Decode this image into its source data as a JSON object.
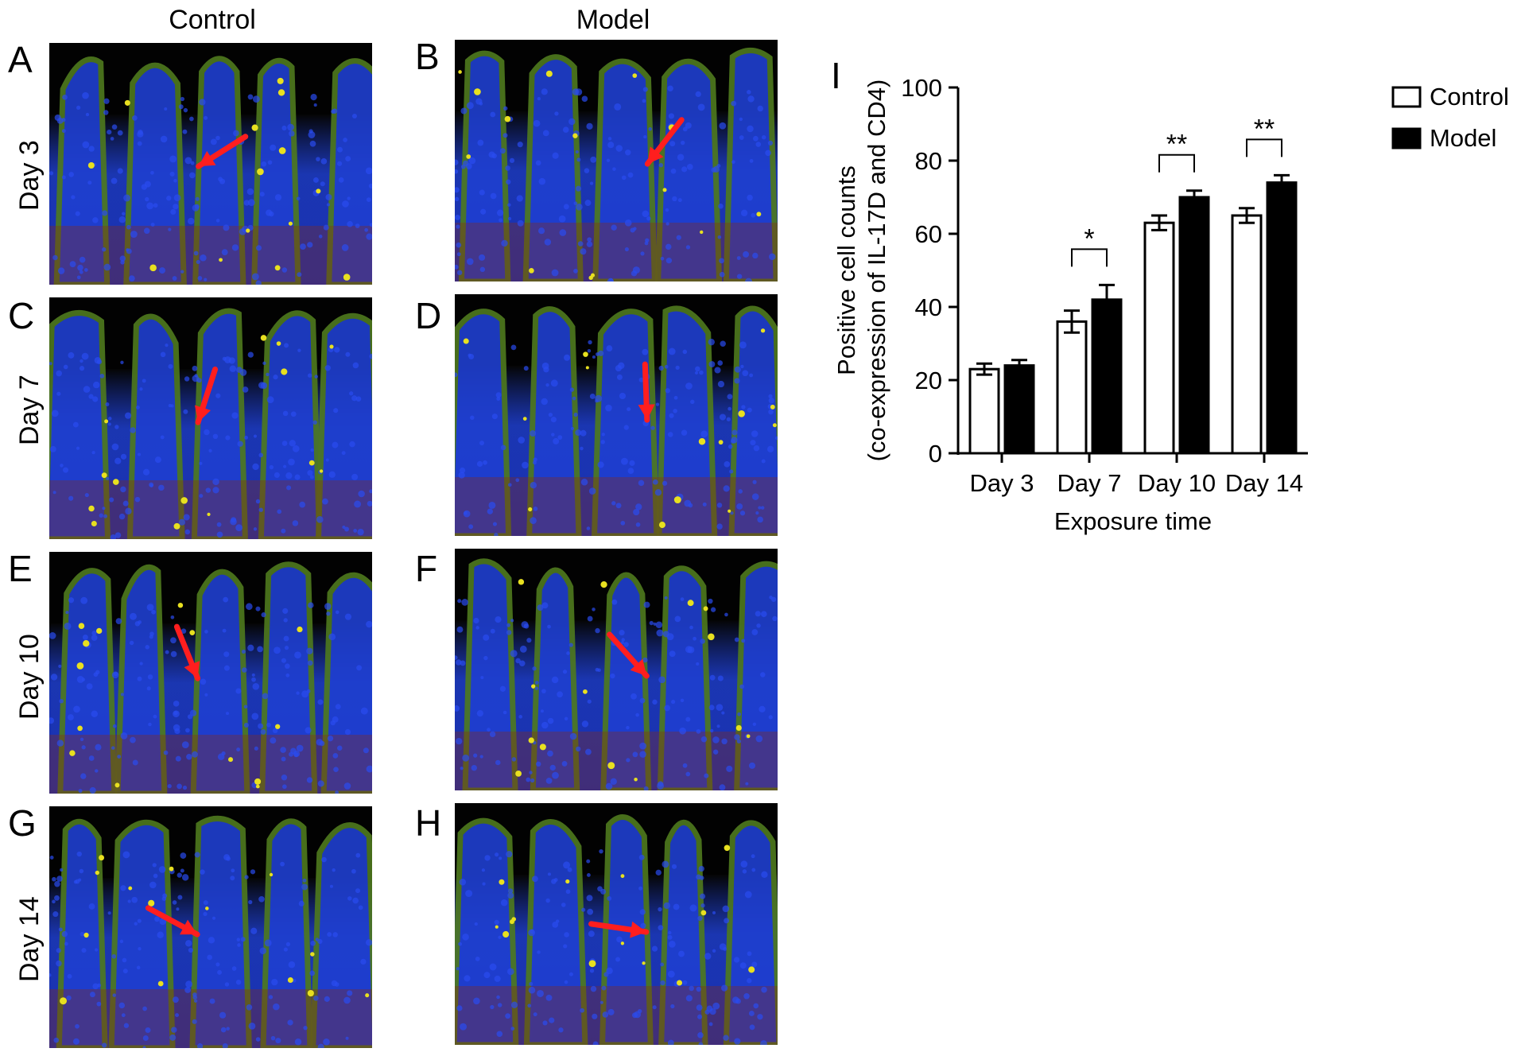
{
  "columns": [
    "Control",
    "Model"
  ],
  "rows": [
    "Day 3",
    "Day 7",
    "Day 10",
    "Day 14"
  ],
  "panel_letters": [
    "A",
    "B",
    "C",
    "D",
    "E",
    "F",
    "G",
    "H"
  ],
  "chart_letter": "I",
  "stain_colors": {
    "tissue_blue": "#1f3fd0",
    "epithelium_green": "#4f7a1e",
    "stroma_red": "#8a2a14",
    "positive_yellow": "#e8e020",
    "arrow_red": "#ff1e1e"
  },
  "chart_data": {
    "type": "bar",
    "categories": [
      "Day 3",
      "Day 7",
      "Day 10",
      "Day 14"
    ],
    "series": [
      {
        "name": "Control",
        "values": [
          23,
          36,
          63,
          65
        ],
        "errors": [
          1.5,
          3,
          2,
          2
        ],
        "color": "#ffffff"
      },
      {
        "name": "Model",
        "values": [
          24,
          42,
          70,
          74
        ],
        "errors": [
          1.5,
          4,
          1.8,
          2
        ],
        "color": "#000000"
      }
    ],
    "xlabel": "Exposure time",
    "ylabel": [
      "Positive cell counts",
      "(co-expression of IL-17D and CD4)"
    ],
    "ylim": [
      0,
      100
    ],
    "yticks": [
      0,
      20,
      40,
      60,
      80,
      100
    ],
    "significance": [
      {
        "category": "Day 7",
        "label": "*"
      },
      {
        "category": "Day 10",
        "label": "**"
      },
      {
        "category": "Day 14",
        "label": "**"
      }
    ],
    "legend_position": "top-right"
  }
}
